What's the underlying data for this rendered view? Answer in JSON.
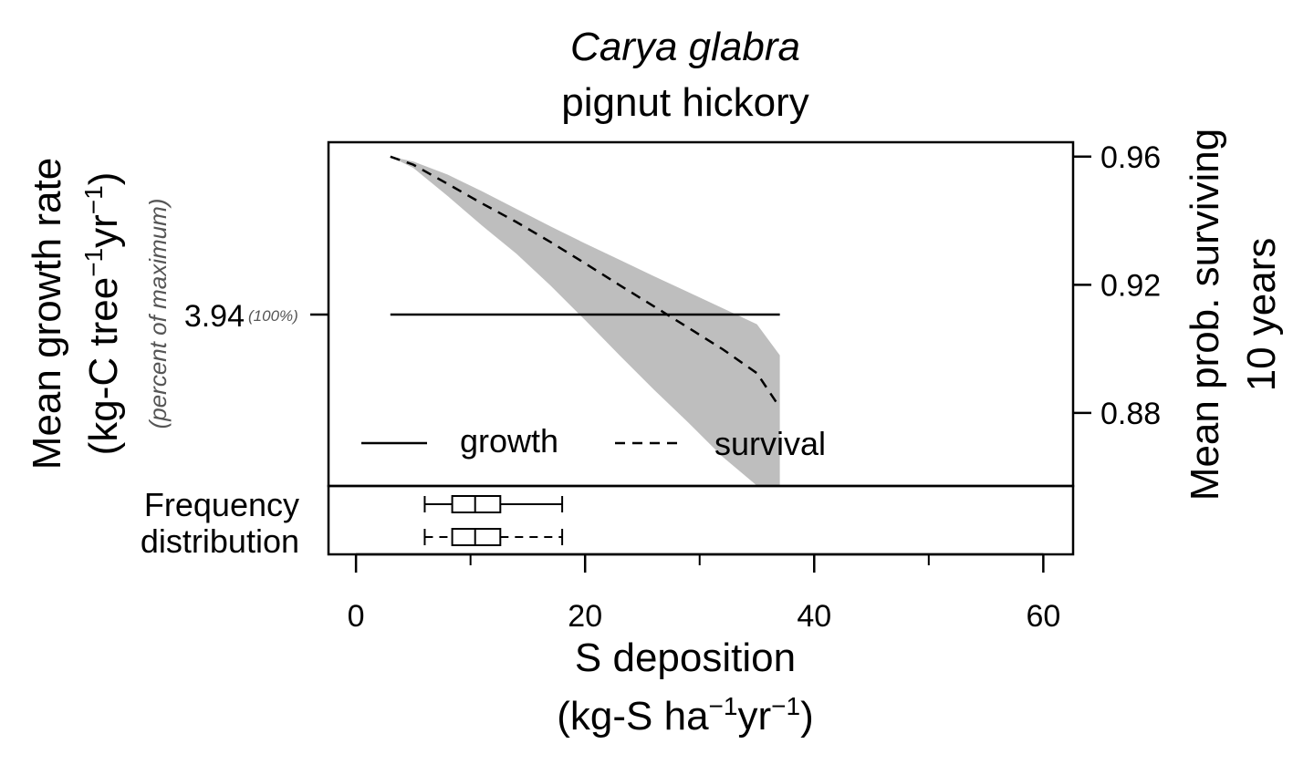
{
  "chart_data": {
    "type": "line",
    "title": "Carya glabra",
    "subtitle": "pignut hickory",
    "xlabel_line1": "S deposition",
    "xlabel_line2": {
      "pre": "(kg-S ha",
      "exp1": "−1",
      "mid": "yr",
      "exp2": "−1",
      "post": ")"
    },
    "ylabel_left_line1": "Mean growth rate",
    "ylabel_left_line2": {
      "pre": "(kg-C tree",
      "exp1": "−1",
      "mid": "yr",
      "exp2": "−1",
      "post": ")"
    },
    "ylabel_left_note": "(percent of maximum)",
    "ylabel_right_line1": "Mean prob. surviving",
    "ylabel_right_line2": "10 years",
    "xlim": [
      -2.4,
      62.6
    ],
    "x_ticks": [
      0,
      20,
      40,
      60
    ],
    "x_tick_labels": [
      "0",
      "20",
      "40",
      "60"
    ],
    "x_minor_ticks": [
      10,
      30,
      50
    ],
    "right_axis_lim": [
      0.8572,
      0.9645
    ],
    "right_ticks": [
      0.88,
      0.92,
      0.96
    ],
    "right_tick_labels": [
      "0.88",
      "0.92",
      "0.96"
    ],
    "left_tick_label": "3.94",
    "left_tick_pct": "(100%)",
    "series": [
      {
        "name": "growth",
        "style": "solid",
        "axis": "left",
        "x": [
          3,
          37
        ],
        "y_relative": [
          1.0,
          1.0
        ]
      },
      {
        "name": "survival",
        "style": "dashed",
        "axis": "right",
        "x": [
          3,
          5,
          8,
          11,
          14,
          17,
          20,
          23,
          26,
          29,
          32,
          35,
          37
        ],
        "y": [
          0.96,
          0.9575,
          0.9515,
          0.9454,
          0.9396,
          0.9333,
          0.9267,
          0.9199,
          0.9133,
          0.9066,
          0.8999,
          0.8924,
          0.8817
        ],
        "ci_upper": [
          0.96,
          0.9585,
          0.9544,
          0.9492,
          0.9437,
          0.9382,
          0.9329,
          0.9278,
          0.9227,
          0.9177,
          0.9127,
          0.9077,
          0.898
        ],
        "ci_lower": [
          0.96,
          0.9565,
          0.9477,
          0.9385,
          0.9297,
          0.9197,
          0.909,
          0.898,
          0.8873,
          0.877,
          0.8663,
          0.8573,
          0.8572
        ]
      }
    ],
    "ci_color": "#bebebe",
    "legend": {
      "position": "bottom-left",
      "entries": [
        "growth",
        "survival"
      ]
    },
    "frequency_label_line1": "Frequency",
    "frequency_label_line2": "distribution",
    "frequency_boxplots": [
      {
        "style": "solid",
        "whisker_low": 6,
        "q1": 8.4,
        "median": 10.4,
        "q3": 12.6,
        "whisker_high": 18
      },
      {
        "style": "dashed",
        "whisker_low": 6,
        "q1": 8.4,
        "median": 10.4,
        "q3": 12.6,
        "whisker_high": 18
      }
    ],
    "grid": false
  }
}
